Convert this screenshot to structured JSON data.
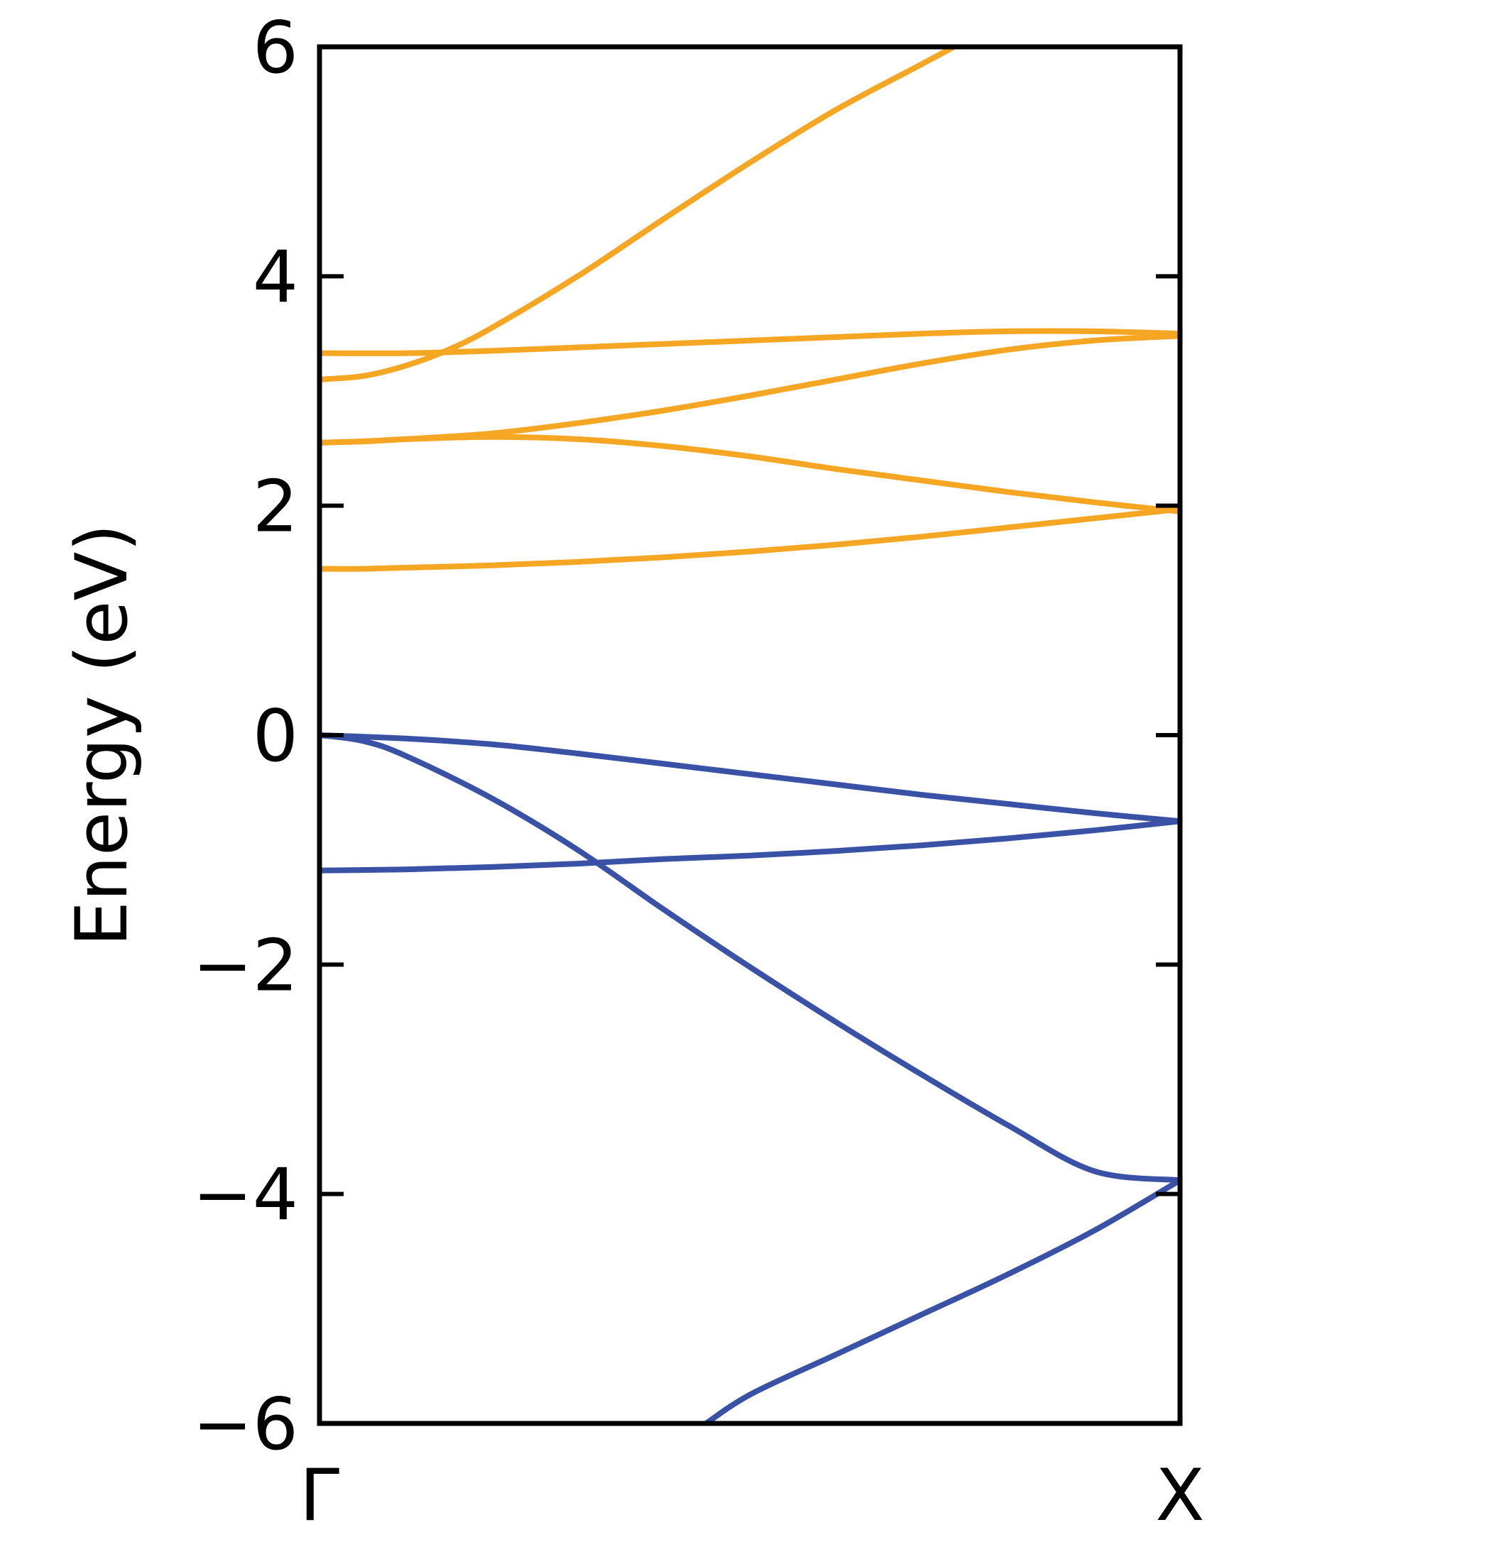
{
  "chart_data": {
    "type": "line",
    "title": "",
    "xlabel": "",
    "ylabel": "Energy (eV)",
    "xlim": [
      0,
      1
    ],
    "ylim": [
      -6,
      6
    ],
    "x_ticks": [
      {
        "value": 0,
        "label": "Γ"
      },
      {
        "value": 1,
        "label": "X"
      }
    ],
    "y_ticks": [
      {
        "value": 6,
        "label": "6"
      },
      {
        "value": 4,
        "label": "4"
      },
      {
        "value": 2,
        "label": "2"
      },
      {
        "value": 0,
        "label": "0"
      },
      {
        "value": -2,
        "label": "−2"
      },
      {
        "value": -4,
        "label": "−4"
      },
      {
        "value": -6,
        "label": "−6"
      }
    ],
    "grid": false,
    "colors": {
      "conduction": "#f5a623",
      "valence": "#3a52a6"
    },
    "series": [
      {
        "group": "conduction",
        "x": [
          0,
          0.05,
          0.1,
          0.2,
          0.3,
          0.4,
          0.5,
          0.6,
          0.7,
          0.8,
          0.9,
          1.0
        ],
        "y": [
          1.45,
          1.45,
          1.46,
          1.48,
          1.51,
          1.55,
          1.6,
          1.66,
          1.73,
          1.81,
          1.89,
          1.97
        ]
      },
      {
        "group": "conduction",
        "x": [
          0,
          0.05,
          0.1,
          0.2,
          0.3,
          0.4,
          0.5,
          0.6,
          0.7,
          0.8,
          0.9,
          1.0
        ],
        "y": [
          2.55,
          2.56,
          2.58,
          2.6,
          2.58,
          2.52,
          2.43,
          2.32,
          2.22,
          2.12,
          2.03,
          1.95
        ]
      },
      {
        "group": "conduction",
        "x": [
          0,
          0.05,
          0.1,
          0.2,
          0.3,
          0.4,
          0.5,
          0.6,
          0.7,
          0.8,
          0.9,
          1.0
        ],
        "y": [
          2.55,
          2.56,
          2.58,
          2.63,
          2.72,
          2.83,
          2.96,
          3.1,
          3.24,
          3.36,
          3.44,
          3.48
        ]
      },
      {
        "group": "conduction",
        "x": [
          0,
          0.1,
          0.2,
          0.3,
          0.4,
          0.5,
          0.6,
          0.7,
          0.8,
          0.9,
          1.0
        ],
        "y": [
          3.33,
          3.33,
          3.35,
          3.38,
          3.41,
          3.44,
          3.47,
          3.5,
          3.52,
          3.52,
          3.5
        ]
      },
      {
        "group": "conduction",
        "x": [
          0,
          0.05,
          0.1,
          0.15,
          0.2,
          0.3,
          0.4,
          0.5,
          0.6,
          0.7,
          0.8,
          0.83
        ],
        "y": [
          3.1,
          3.13,
          3.22,
          3.36,
          3.55,
          4.0,
          4.5,
          4.99,
          5.45,
          5.85,
          6.25,
          6.35
        ]
      },
      {
        "group": "valence",
        "x": [
          0,
          0.1,
          0.2,
          0.3,
          0.4,
          0.5,
          0.6,
          0.7,
          0.8,
          0.9,
          1.0
        ],
        "y": [
          0,
          -0.03,
          -0.08,
          -0.16,
          -0.25,
          -0.34,
          -0.43,
          -0.52,
          -0.6,
          -0.68,
          -0.75
        ]
      },
      {
        "group": "valence",
        "x": [
          0,
          0.05,
          0.1,
          0.2,
          0.3,
          0.4,
          0.5,
          0.6,
          0.7,
          0.8,
          0.9,
          1.0
        ],
        "y": [
          0,
          -0.05,
          -0.18,
          -0.55,
          -1.0,
          -1.52,
          -2.02,
          -2.5,
          -2.96,
          -3.4,
          -3.8,
          -3.88
        ]
      },
      {
        "group": "valence",
        "x": [
          0,
          0.1,
          0.2,
          0.3,
          0.4,
          0.5,
          0.6,
          0.7,
          0.8,
          0.9,
          1.0
        ],
        "y": [
          -1.18,
          -1.17,
          -1.15,
          -1.12,
          -1.08,
          -1.05,
          -1.01,
          -0.96,
          -0.9,
          -0.83,
          -0.75
        ]
      },
      {
        "group": "valence",
        "x": [
          0.44,
          0.5,
          0.6,
          0.7,
          0.8,
          0.9,
          1.0
        ],
        "y": [
          -6.05,
          -5.75,
          -5.4,
          -5.05,
          -4.7,
          -4.32,
          -3.88
        ]
      }
    ]
  }
}
